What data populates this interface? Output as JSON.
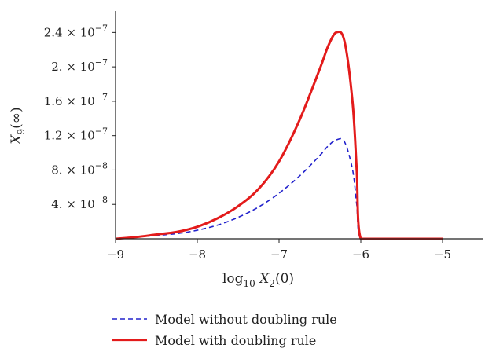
{
  "chart_data": {
    "type": "line",
    "xlabel": {
      "base": "log",
      "sub": "10",
      "var": "X",
      "var_sub": "2",
      "arg": "(0)"
    },
    "ylabel": {
      "var": "X",
      "var_sub": "9",
      "arg": "(∞)"
    },
    "xlim": [
      -9,
      -4.5
    ],
    "ylim": [
      0,
      2.65e-07
    ],
    "x_ticks": [
      -9,
      -8,
      -7,
      -6,
      -5
    ],
    "x_tick_labels": [
      "−9",
      "−8",
      "−7",
      "−6",
      "−5"
    ],
    "y_ticks": [
      4e-08,
      8e-08,
      1.2e-07,
      1.6e-07,
      2e-07,
      2.4e-07
    ],
    "y_tick_labels": [
      {
        "mantissa": "4.",
        "exp": "−8"
      },
      {
        "mantissa": "8.",
        "exp": "−8"
      },
      {
        "mantissa": "1.2",
        "exp": "−7"
      },
      {
        "mantissa": "1.6",
        "exp": "−7"
      },
      {
        "mantissa": "2.",
        "exp": "−7"
      },
      {
        "mantissa": "2.4",
        "exp": "−7"
      }
    ],
    "legend_position": "bottom",
    "grid": false,
    "series": [
      {
        "name": "Model without doubling rule",
        "style": "dashed",
        "color": "#2222cc",
        "x": [
          -9.0,
          -8.75,
          -8.5,
          -8.25,
          -8.0,
          -7.75,
          -7.5,
          -7.25,
          -7.0,
          -6.75,
          -6.5,
          -6.4,
          -6.3,
          -6.2,
          -6.1,
          -6.05,
          -6.0,
          -5.75,
          -5.5,
          -5.25,
          -5.0
        ],
        "y": [
          0.0,
          2e-09,
          4e-09,
          6e-09,
          1e-08,
          1.6e-08,
          2.5e-08,
          3.7e-08,
          5.3e-08,
          7.3e-08,
          9.7e-08,
          1.08e-07,
          1.15e-07,
          1.13e-07,
          8e-08,
          4e-08,
          0.0,
          0.0,
          0.0,
          0.0,
          0.0
        ]
      },
      {
        "name": "Model with doubling rule",
        "style": "solid",
        "color": "#e31b1b",
        "x": [
          -9.0,
          -8.75,
          -8.5,
          -8.25,
          -8.0,
          -7.75,
          -7.5,
          -7.25,
          -7.0,
          -6.75,
          -6.5,
          -6.4,
          -6.3,
          -6.2,
          -6.1,
          -6.05,
          -6.0,
          -5.75,
          -5.5,
          -5.25,
          -5.0
        ],
        "y": [
          0.0,
          2e-09,
          5e-09,
          8e-09,
          1.4e-08,
          2.4e-08,
          3.8e-08,
          5.8e-08,
          9e-08,
          1.38e-07,
          1.98e-07,
          2.24e-07,
          2.4e-07,
          2.3e-07,
          1.58e-07,
          8e-08,
          0.0,
          0.0,
          0.0,
          0.0,
          0.0
        ]
      }
    ]
  }
}
